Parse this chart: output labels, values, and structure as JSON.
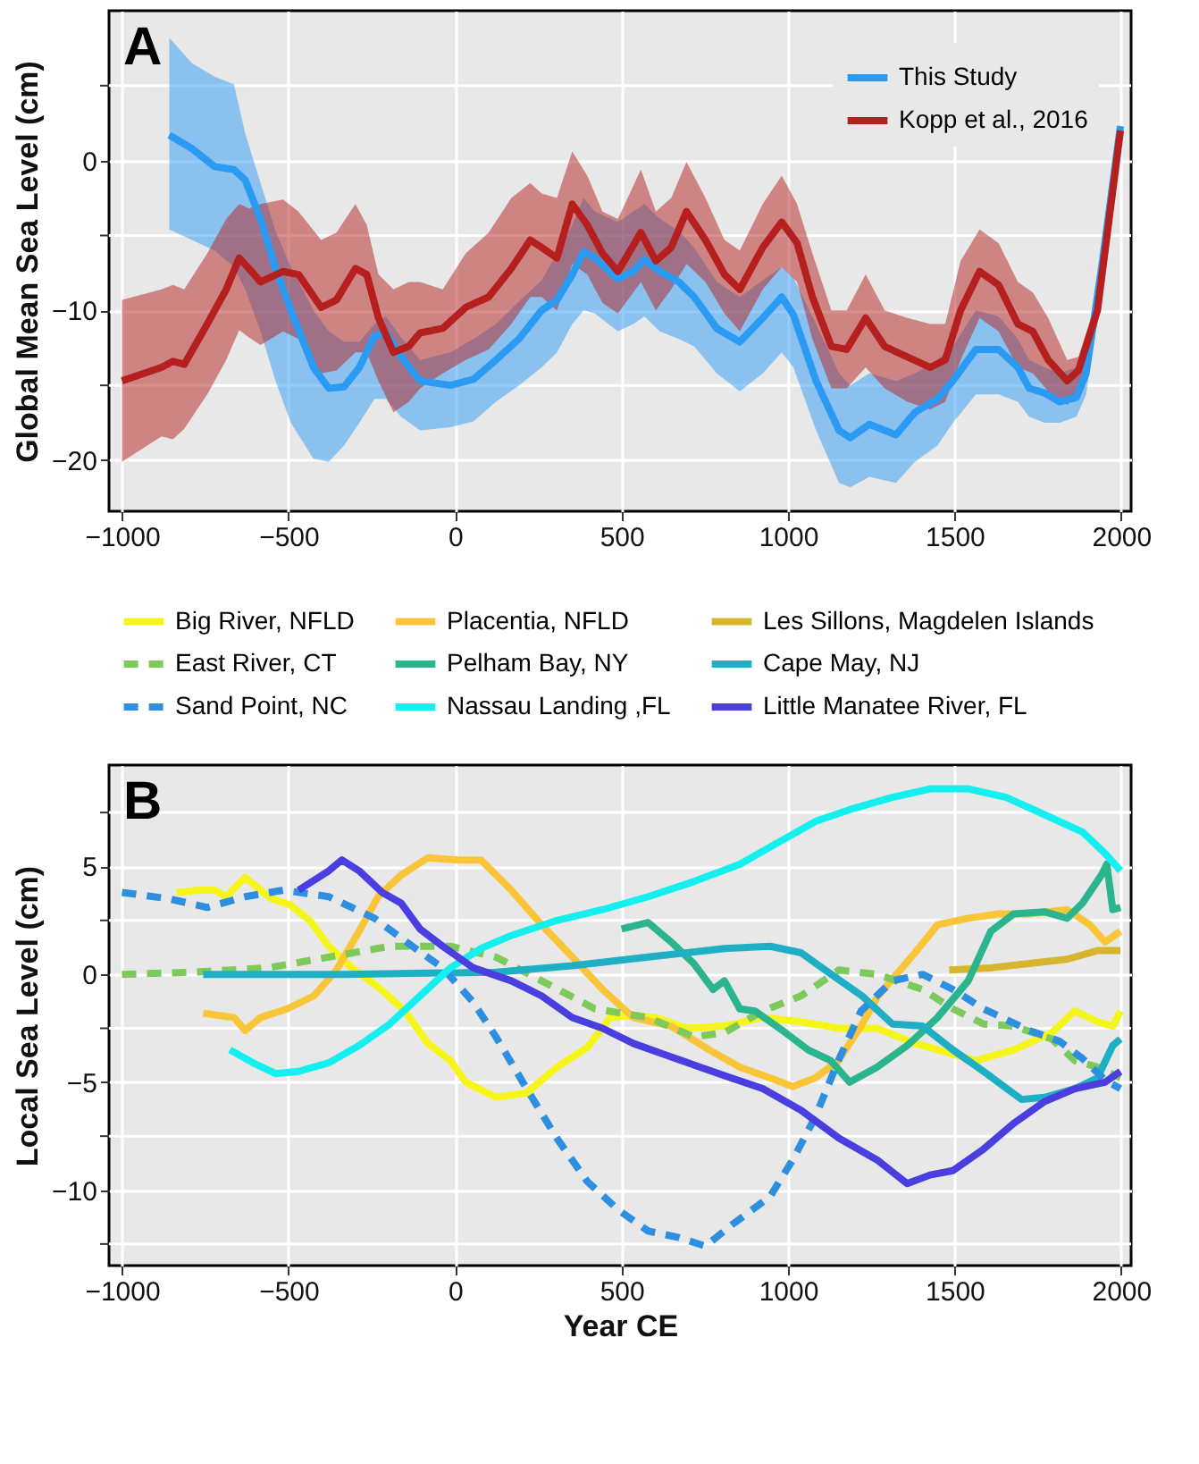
{
  "chart_data": [
    {
      "type": "line",
      "ylabel": "Global Mean Sea Level (cm)",
      "annotations": [
        "A"
      ],
      "xlim": [
        -1039,
        2030
      ],
      "ylim": [
        -23.4,
        10
      ],
      "xticks": [
        -1000,
        -500,
        0,
        500,
        1000,
        1500,
        2000
      ],
      "yticks": [
        -20,
        {
          "value": -15,
          "label": null
        },
        -10,
        {
          "value": -5,
          "label": null
        },
        0,
        {
          "value": 5,
          "label": null
        }
      ],
      "grid": true,
      "legend": "top right",
      "marker": "none",
      "series": [
        {
          "name": "This Study",
          "color": "#2b9af3",
          "x": [
            -858,
            -790,
            -722,
            -664,
            -630,
            -584,
            -539,
            -493,
            -425,
            -379,
            -333,
            -287,
            -242,
            -208,
            -162,
            -105,
            -14,
            55,
            123,
            192,
            260,
            306,
            352,
            386,
            420,
            489,
            535,
            569,
            615,
            672,
            718,
            786,
            855,
            924,
            981,
            1016,
            1084,
            1153,
            1187,
            1244,
            1324,
            1381,
            1449,
            1495,
            1564,
            1632,
            1690,
            1724,
            1770,
            1815,
            1866,
            1895,
            1941,
            1998
          ],
          "values": [
            1.7,
            0.8,
            -0.4,
            -0.6,
            -1.3,
            -3.9,
            -7.2,
            -10,
            -13.8,
            -15.2,
            -15.1,
            -13.8,
            -11.7,
            -11.5,
            -13.1,
            -14.7,
            -15,
            -14.6,
            -13.3,
            -11.9,
            -10,
            -9.3,
            -7.6,
            -6.1,
            -6.5,
            -7.9,
            -7.4,
            -6.6,
            -7.4,
            -8.1,
            -9.1,
            -11.2,
            -12.1,
            -10.5,
            -9.1,
            -10.3,
            -14.7,
            -18,
            -18.5,
            -17.6,
            -18.3,
            -16.8,
            -15.9,
            -14.7,
            -12.6,
            -12.6,
            -13.8,
            -15.2,
            -15.5,
            -16.1,
            -15.8,
            -14.2,
            -7.2,
            2.3
          ],
          "upper": [
            8.2,
            6.5,
            5.6,
            5.1,
            1.8,
            -1.5,
            -4.7,
            -7.1,
            -10,
            -11.4,
            -12.1,
            -12.1,
            -10.9,
            -10.4,
            -11.8,
            -13.3,
            -12.8,
            -11.9,
            -10.9,
            -9.4,
            -8,
            -6.2,
            -4.3,
            -2.5,
            -3.4,
            -4.1,
            -3.4,
            -2.9,
            -3.9,
            -4.7,
            -5.8,
            -8.1,
            -9.1,
            -8,
            -7.1,
            -7.8,
            -10.9,
            -14.2,
            -15,
            -14.2,
            -14.7,
            -14.2,
            -13.3,
            -12.4,
            -10,
            -10.4,
            -11.9,
            -13.3,
            -13.8,
            -14.2,
            -13.8,
            -12.8,
            -6.2,
            2.5
          ],
          "lower": [
            -4.6,
            -5.3,
            -6,
            -7.1,
            -8.6,
            -11.4,
            -14.7,
            -17.5,
            -19.9,
            -20.1,
            -19,
            -17.5,
            -15.9,
            -15.9,
            -17.1,
            -18,
            -17.8,
            -17.4,
            -16.1,
            -15,
            -13.8,
            -12.8,
            -10.9,
            -10,
            -10.2,
            -11.4,
            -10.9,
            -10.4,
            -11.4,
            -11.9,
            -12.4,
            -14.2,
            -15.4,
            -14.2,
            -12.8,
            -13.8,
            -18,
            -21.5,
            -21.8,
            -21.1,
            -21.5,
            -20.1,
            -19,
            -17.5,
            -15.6,
            -15.6,
            -16.1,
            -17.1,
            -17.5,
            -17.5,
            -17.1,
            -15.6,
            -8.1,
            2
          ]
        },
        {
          "name": "Kopp et al., 2016",
          "color": "#b5201f",
          "x": [
            -1000,
            -881,
            -847,
            -813,
            -744,
            -687,
            -648,
            -619,
            -584,
            -516,
            -470,
            -402,
            -356,
            -299,
            -265,
            -230,
            -185,
            -139,
            -105,
            -37,
            32,
            101,
            169,
            226,
            260,
            306,
            352,
            397,
            443,
            489,
            558,
            603,
            649,
            695,
            752,
            809,
            855,
            924,
            981,
            1027,
            1073,
            1130,
            1176,
            1233,
            1290,
            1358,
            1427,
            1472,
            1518,
            1575,
            1632,
            1690,
            1735,
            1781,
            1838,
            1872,
            1929,
            1998
          ],
          "values": [
            -14.7,
            -13.8,
            -13.4,
            -13.6,
            -10.9,
            -8.6,
            -6.5,
            -7.2,
            -8.1,
            -7.4,
            -7.6,
            -9.8,
            -9.3,
            -7.2,
            -7.6,
            -10.5,
            -12.8,
            -12.4,
            -11.5,
            -11.2,
            -9.8,
            -9.1,
            -7.2,
            -5.3,
            -5.8,
            -6.5,
            -2.9,
            -4.3,
            -6.2,
            -7.4,
            -4.8,
            -6.7,
            -5.8,
            -3.4,
            -5.3,
            -7.6,
            -8.6,
            -5.8,
            -4.1,
            -5.5,
            -9.1,
            -12.4,
            -12.6,
            -10.5,
            -12.4,
            -13.1,
            -13.8,
            -13.3,
            -10,
            -7.4,
            -8.3,
            -10.9,
            -11.4,
            -13.3,
            -14.7,
            -14,
            -10,
            2
          ],
          "upper": [
            -9.3,
            -8.6,
            -8.3,
            -8.6,
            -6.2,
            -3.9,
            -2.9,
            -3.2,
            -2.9,
            -2.6,
            -3.4,
            -5.3,
            -4.8,
            -2.9,
            -4.3,
            -7.6,
            -8.6,
            -8.1,
            -8.1,
            -8.6,
            -6.2,
            -4.8,
            -2.5,
            -1.5,
            -2.2,
            -2.5,
            0.6,
            -1,
            -3.4,
            -3.9,
            -0.6,
            -3.4,
            -2.5,
            -0.1,
            -2.5,
            -5.3,
            -6,
            -2.9,
            -1,
            -2.9,
            -6.2,
            -10,
            -10,
            -7.6,
            -10,
            -10.5,
            -10.9,
            -10.9,
            -6.7,
            -4.6,
            -5.5,
            -8.1,
            -8.8,
            -10.5,
            -13.3,
            -13.1,
            -9.1,
            2.3
          ],
          "lower": [
            -20.1,
            -18.4,
            -18.6,
            -17.9,
            -15.6,
            -13.3,
            -11.3,
            -11.8,
            -12.3,
            -11.4,
            -11.9,
            -14.2,
            -14,
            -12.8,
            -12.8,
            -14.7,
            -16.8,
            -16.1,
            -15.2,
            -14.2,
            -13.3,
            -12.6,
            -10.9,
            -9.1,
            -9.1,
            -10,
            -6.9,
            -7.6,
            -9.5,
            -10.2,
            -8.1,
            -10,
            -8.6,
            -6.9,
            -8.1,
            -10.2,
            -11.4,
            -8.6,
            -7.1,
            -8.1,
            -11.9,
            -15.2,
            -15.2,
            -13.8,
            -15.2,
            -16.1,
            -16.6,
            -16.1,
            -13.3,
            -10.5,
            -11.4,
            -13.8,
            -14.2,
            -15.4,
            -16.3,
            -15.6,
            -10.9,
            1.8
          ]
        }
      ]
    },
    {
      "type": "line",
      "xlabel": "Year CE",
      "ylabel": "Local Sea Level (cm)",
      "annotations": [
        "B"
      ],
      "xlim": [
        -1039,
        2030
      ],
      "ylim": [
        -13.5,
        9.7
      ],
      "xticks": [
        -1000,
        -500,
        0,
        500,
        1000,
        1500,
        2000
      ],
      "yticks": [
        {
          "value": -12.5,
          "label": null
        },
        -10,
        {
          "value": -7.5,
          "label": null
        },
        -5,
        {
          "value": -2.5,
          "label": null
        },
        0,
        {
          "value": 2.5,
          "label": null
        },
        5,
        {
          "value": 7.5,
          "label": null
        }
      ],
      "grid": true,
      "legend": "top",
      "marker": "none",
      "series": [
        {
          "name": "Big River, NFLD",
          "color": "#f5f51a",
          "line_style": "solid",
          "x": [
            -836,
            -767,
            -722,
            -687,
            -630,
            -584,
            -550,
            -493,
            -436,
            -379,
            -310,
            -230,
            -150,
            -82,
            -14,
            32,
            123,
            215,
            306,
            397,
            466,
            535,
            603,
            695,
            809,
            924,
            1039,
            1153,
            1267,
            1381,
            1495,
            1564,
            1678,
            1792,
            1861,
            1929,
            1975,
            1998
          ],
          "values": [
            3.8,
            3.9,
            3.9,
            3.6,
            4.5,
            3.9,
            3.5,
            3.2,
            2.5,
            1.3,
            0.3,
            -0.6,
            -1.7,
            -3.2,
            -4,
            -5,
            -5.7,
            -5.5,
            -4.3,
            -3.4,
            -2,
            -1.9,
            -2,
            -2.5,
            -2.4,
            -2,
            -2.2,
            -2.5,
            -2.5,
            -3.2,
            -3.7,
            -4,
            -3.5,
            -2.7,
            -1.7,
            -2.2,
            -2.4,
            -1.7
          ]
        },
        {
          "name": "Placentia, NFLD",
          "color": "#fbc53a",
          "line_style": "solid",
          "x": [
            -756,
            -664,
            -630,
            -584,
            -504,
            -424,
            -356,
            -288,
            -231,
            -162,
            -82,
            9,
            78,
            169,
            260,
            352,
            443,
            535,
            649,
            763,
            855,
            946,
            1014,
            1082,
            1151,
            1219,
            1270,
            1381,
            1449,
            1541,
            1632,
            1724,
            1838,
            1906,
            1952,
            1998
          ],
          "values": [
            -1.8,
            -2,
            -2.6,
            -2,
            -1.6,
            -1,
            0.2,
            2,
            3.6,
            4.6,
            5.4,
            5.3,
            5.3,
            3.9,
            2.3,
            0.8,
            -0.7,
            -2,
            -2.4,
            -3.5,
            -4.3,
            -4.8,
            -5.2,
            -4.8,
            -4,
            -2.4,
            -1,
            1,
            2.3,
            2.6,
            2.8,
            2.8,
            3,
            2.3,
            1.5,
            2
          ]
        },
        {
          "name": "Les Sillons, Magdelen Islands",
          "color": "#d6b52f",
          "line_style": "solid",
          "x": [
            1484,
            1609,
            1724,
            1838,
            1929,
            1998
          ],
          "values": [
            0.2,
            0.3,
            0.5,
            0.7,
            1.1,
            1.1
          ]
        },
        {
          "name": "East River, CT",
          "color": "#7dc95a",
          "line_style": "dashed",
          "x": [
            -1000,
            -790,
            -561,
            -379,
            -196,
            -14,
            123,
            260,
            420,
            580,
            717,
            809,
            924,
            1039,
            1153,
            1267,
            1404,
            1495,
            1587,
            1678,
            1792,
            1861,
            1929,
            1998
          ],
          "values": [
            0,
            0.1,
            0.3,
            0.8,
            1.3,
            1.3,
            0.8,
            -0.3,
            -1.6,
            -2,
            -2.9,
            -2.7,
            -1.7,
            -1,
            0.2,
            0,
            -0.7,
            -1.6,
            -2.3,
            -2.4,
            -3,
            -4,
            -4.3,
            -4.8
          ]
        },
        {
          "name": "Pelham Bay, NY",
          "color": "#2bb58f",
          "line_style": "solid",
          "x": [
            500,
            580,
            649,
            717,
            775,
            809,
            855,
            901,
            992,
            1060,
            1128,
            1185,
            1267,
            1358,
            1449,
            1541,
            1609,
            1678,
            1770,
            1838,
            1884,
            1941,
            1957,
            1975,
            1998
          ],
          "values": [
            2.1,
            2.4,
            1.5,
            0.5,
            -0.7,
            -0.3,
            -1.6,
            -1.7,
            -2.7,
            -3.5,
            -4,
            -5,
            -4.3,
            -3.3,
            -2,
            -0.3,
            2,
            2.8,
            2.9,
            2.6,
            3.3,
            4.6,
            5.1,
            3,
            3.1
          ]
        },
        {
          "name": "Cape May, NJ",
          "color": "#1fafc4",
          "line_style": "solid",
          "x": [
            -756,
            -333,
            123,
            352,
            580,
            809,
            946,
            1039,
            1130,
            1222,
            1313,
            1404,
            1495,
            1587,
            1701,
            1770,
            1861,
            1929,
            1975,
            1998
          ],
          "values": [
            0,
            0,
            0.1,
            0.4,
            0.8,
            1.2,
            1.3,
            1,
            0,
            -1,
            -2.3,
            -2.4,
            -3.5,
            -4.5,
            -5.8,
            -5.7,
            -5.3,
            -4.8,
            -3.3,
            -3
          ]
        },
        {
          "name": "Sand Point, NC",
          "color": "#2e8fe0",
          "line_style": "dashed",
          "x": [
            -1000,
            -858,
            -744,
            -630,
            -516,
            -379,
            -242,
            -128,
            -37,
            55,
            123,
            215,
            306,
            397,
            489,
            580,
            672,
            752,
            832,
            946,
            1014,
            1082,
            1151,
            1219,
            1313,
            1404,
            1495,
            1587,
            1724,
            1815,
            1884,
            1952,
            1998
          ],
          "values": [
            3.8,
            3.5,
            3.1,
            3.6,
            3.9,
            3.6,
            2.6,
            1.3,
            0.3,
            -1.3,
            -2.9,
            -5.3,
            -7.6,
            -9.6,
            -10.9,
            -11.9,
            -12.2,
            -12.6,
            -11.6,
            -10.3,
            -8.6,
            -6.6,
            -4,
            -1.7,
            -0.3,
            0,
            -0.7,
            -1.6,
            -2.6,
            -3.1,
            -3.9,
            -4.9,
            -5.3
          ]
        },
        {
          "name": "Nassau Landing ,FL",
          "color": "#14f0f0",
          "line_style": "solid",
          "x": [
            -676,
            -607,
            -539,
            -470,
            -379,
            -288,
            -196,
            -105,
            -14,
            78,
            169,
            306,
            443,
            580,
            717,
            855,
            969,
            1084,
            1198,
            1313,
            1427,
            1541,
            1655,
            1770,
            1884,
            1952,
            1998
          ],
          "values": [
            -3.5,
            -4.1,
            -4.6,
            -4.5,
            -4.1,
            -3.3,
            -2.3,
            -1,
            0.3,
            1.2,
            1.8,
            2.5,
            3,
            3.6,
            4.3,
            5.1,
            6.1,
            7.1,
            7.7,
            8.2,
            8.6,
            8.6,
            8.2,
            7.4,
            6.6,
            5.6,
            4.8
          ]
        },
        {
          "name": "Little Manatee River, FL",
          "color": "#4a3ee0",
          "line_style": "solid",
          "x": [
            -470,
            -379,
            -340,
            -288,
            -219,
            -162,
            -105,
            -37,
            55,
            169,
            260,
            352,
            443,
            535,
            626,
            717,
            809,
            924,
            1039,
            1153,
            1267,
            1358,
            1427,
            1495,
            1587,
            1678,
            1770,
            1861,
            1952,
            1998
          ],
          "values": [
            3.9,
            4.8,
            5.3,
            4.8,
            3.8,
            3.3,
            2.1,
            1.3,
            0.3,
            -0.3,
            -1,
            -2,
            -2.5,
            -3.2,
            -3.7,
            -4.2,
            -4.7,
            -5.3,
            -6.3,
            -7.6,
            -8.6,
            -9.7,
            -9.3,
            -9.1,
            -8.1,
            -6.9,
            -5.9,
            -5.3,
            -5,
            -4.5
          ]
        }
      ]
    }
  ]
}
